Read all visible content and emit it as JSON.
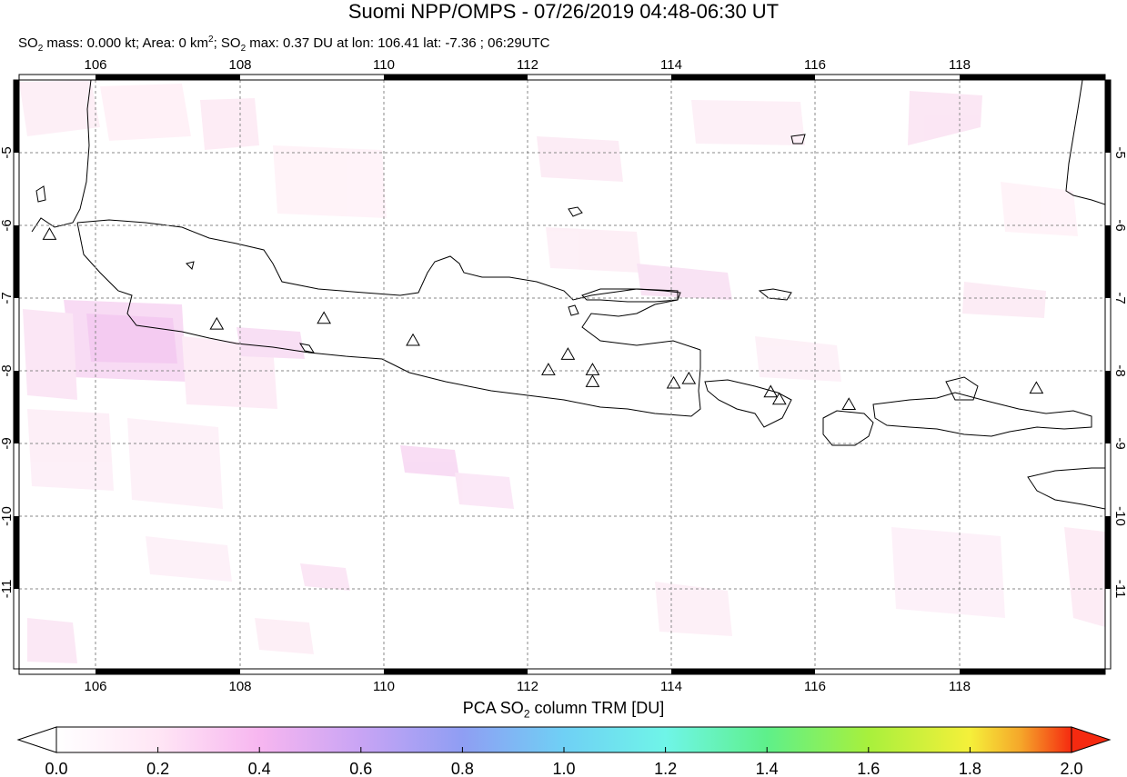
{
  "title": "Suomi NPP/OMPS - 07/26/2019 04:48-06:30 UT",
  "subtitle": {
    "so2_mass_label": "SO",
    "so2_sub": "2",
    "mass_text": " mass: 0.000 kt; Area: 0 km",
    "area_sup": "2",
    "max_text": "; SO",
    "max_sub": "2",
    "max_rest": " max: 0.37 DU at lon: 106.41 lat: -7.36 ; 06:29UTC"
  },
  "map": {
    "lon_range": [
      105.0,
      120.0
    ],
    "lat_range": [
      -12.0,
      -4.0
    ],
    "lon_ticks": [
      "106",
      "108",
      "110",
      "112",
      "114",
      "116",
      "118"
    ],
    "lat_ticks": [
      "-5",
      "-6",
      "-7",
      "-8",
      "-9",
      "-10",
      "-11"
    ],
    "grid": "dashed",
    "volcanoes": [
      {
        "lon": 105.42,
        "lat": -6.1
      },
      {
        "lon": 107.73,
        "lat": -7.32
      },
      {
        "lon": 109.21,
        "lat": -7.24
      },
      {
        "lon": 110.44,
        "lat": -7.54
      },
      {
        "lon": 112.31,
        "lat": -7.94
      },
      {
        "lon": 112.58,
        "lat": -7.73
      },
      {
        "lon": 112.92,
        "lat": -7.94
      },
      {
        "lon": 112.92,
        "lat": -8.1
      },
      {
        "lon": 114.04,
        "lat": -8.12
      },
      {
        "lon": 114.25,
        "lat": -8.06
      },
      {
        "lon": 115.38,
        "lat": -8.24
      },
      {
        "lon": 115.5,
        "lat": -8.34
      },
      {
        "lon": 116.46,
        "lat": -8.41
      },
      {
        "lon": 119.05,
        "lat": -8.19
      }
    ]
  },
  "colorbar": {
    "title_main": "PCA SO",
    "title_sub": "2",
    "title_rest": " column TRM [DU]",
    "labels": [
      "0.0",
      "0.2",
      "0.4",
      "0.6",
      "0.8",
      "1.0",
      "1.2",
      "1.4",
      "1.6",
      "1.8",
      "2.0"
    ],
    "min": 0.0,
    "max": 2.0,
    "colors": [
      "#ffffff",
      "#ffe6f5",
      "#f7b6f0",
      "#c8a4f4",
      "#8f9ef3",
      "#6fd0f5",
      "#6ff5e8",
      "#5ef08a",
      "#a8f03c",
      "#f5f03a",
      "#f5a62a",
      "#f52a10"
    ]
  }
}
